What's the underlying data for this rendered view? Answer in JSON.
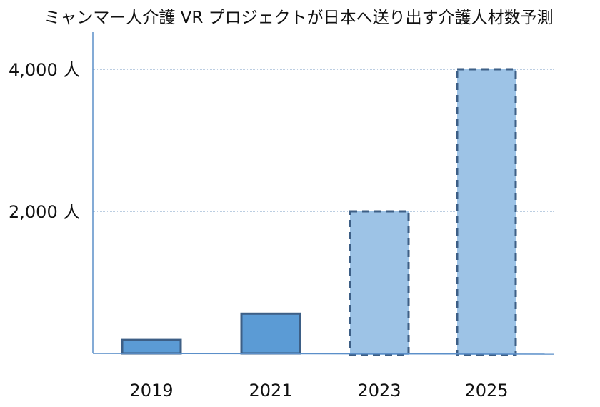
{
  "chart_data": {
    "type": "bar",
    "title": "ミャンマー人介護 VR プロジェクトが日本へ送り出す介護人材数予測",
    "xlabel": "",
    "ylabel": "",
    "categories": [
      "2019",
      "2021",
      "2023",
      "2025"
    ],
    "values": [
      190,
      560,
      2000,
      4000
    ],
    "projected": [
      false,
      false,
      true,
      true
    ],
    "ylim": [
      0,
      4000
    ],
    "yticks": [
      {
        "value": 2000,
        "label": "2,000 人"
      },
      {
        "value": 4000,
        "label": "4,000 人"
      }
    ],
    "grid": true,
    "colors": {
      "actual_fill": "#5b9bd5",
      "projected_fill": "#9dc3e6",
      "border": "#3d5f86",
      "axis": "#5b8fc9",
      "grid": "#7a9cc6"
    }
  }
}
